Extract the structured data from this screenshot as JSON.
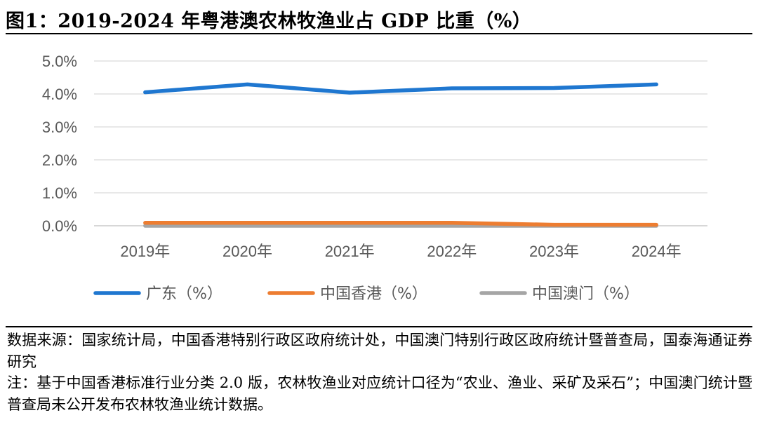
{
  "header": {
    "title": "图1：2019-2024 年粤港澳农林牧渔业占 GDP 比重（%）"
  },
  "chart_data": {
    "type": "line",
    "categories": [
      "2019年",
      "2020年",
      "2021年",
      "2022年",
      "2023年",
      "2024年"
    ],
    "ylim": [
      0,
      5
    ],
    "yticks": [
      0,
      1,
      2,
      3,
      4,
      5
    ],
    "ytick_labels": [
      "0.0%",
      "1.0%",
      "2.0%",
      "3.0%",
      "4.0%",
      "5.0%"
    ],
    "grid": true,
    "legend_position": "bottom",
    "series": [
      {
        "name": "广东（%）",
        "color": "#1f77d0",
        "values": [
          4.05,
          4.29,
          4.04,
          4.17,
          4.18,
          4.29
        ]
      },
      {
        "name": "中国香港（%）",
        "color": "#ed7d31",
        "values": [
          0.09,
          0.09,
          0.09,
          0.09,
          0.03,
          0.03
        ]
      },
      {
        "name": "中国澳门（%）",
        "color": "#a5a5a5",
        "values": [
          0.0,
          0.0,
          0.0,
          0.0,
          0.0,
          0.0
        ]
      }
    ]
  },
  "notes": {
    "source": "数据来源：国家统计局，中国香港特别行政区政府统计处，中国澳门特别行政区政府统计暨普查局，国泰海通证券研究",
    "note": "注：基于中国香港标准行业分类 2.0 版，农林牧渔业对应统计口径为“农业、渔业、采矿及采石”；中国澳门统计暨普查局未公开发布农林牧渔业统计数据。"
  }
}
